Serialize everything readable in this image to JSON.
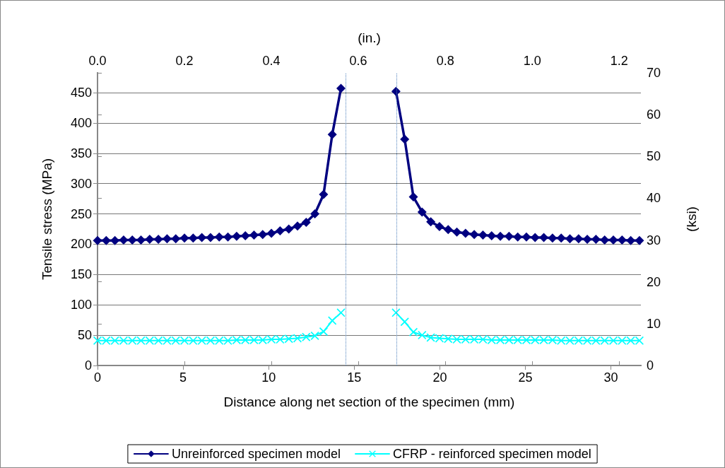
{
  "chart_data": {
    "type": "line",
    "xlabel": "Distance along net section of the specimen (mm)",
    "ylabel": "Tensile stress (MPa)",
    "y2label": "(ksi)",
    "x2label": "(in.)",
    "xlim": [
      0,
      31.75
    ],
    "xticks": [
      0,
      5,
      10,
      15,
      20,
      25,
      30
    ],
    "x2lim": [
      0,
      1.25
    ],
    "x2ticks": [
      {
        "value": 0,
        "label": "0.0"
      },
      {
        "value": 0.2,
        "label": "0.2"
      },
      {
        "value": 0.4,
        "label": "0.4"
      },
      {
        "value": 0.6,
        "label": "0.6"
      },
      {
        "value": 0.8,
        "label": "0.8"
      },
      {
        "value": 1,
        "label": "1.0"
      },
      {
        "value": 1.2,
        "label": "1.2"
      }
    ],
    "ylim": [
      0,
      482.6
    ],
    "yticks": [
      0,
      50,
      100,
      150,
      200,
      250,
      300,
      350,
      400,
      450
    ],
    "y2lim": [
      0,
      70
    ],
    "y2ticks": [
      0,
      10,
      20,
      30,
      40,
      50,
      60,
      70
    ],
    "grid": "y",
    "legend": "bottom",
    "ref_lines": [
      {
        "axis": "x",
        "value": 14.5,
        "color": "#4f81bd",
        "line_style": "dotted"
      },
      {
        "axis": "x",
        "value": 17.48,
        "color": "#4f81bd",
        "line_style": "dotted"
      }
    ],
    "series": [
      {
        "name": "Unreinforced specimen model",
        "color": "#000080",
        "marker": "diamond",
        "x": [
          0,
          0.508,
          1.016,
          1.524,
          2.032,
          2.54,
          3.048,
          3.556,
          4.064,
          4.572,
          5.08,
          5.588,
          6.096,
          6.604,
          7.112,
          7.62,
          8.128,
          8.636,
          9.144,
          9.652,
          10.16,
          10.668,
          11.176,
          11.684,
          12.192,
          12.7,
          13.208,
          13.716,
          14.224,
          null,
          17.44,
          17.948,
          18.456,
          18.964,
          19.472,
          19.98,
          20.488,
          20.996,
          21.504,
          22.012,
          22.52,
          23.028,
          23.536,
          24.044,
          24.552,
          25.06,
          25.568,
          26.076,
          26.584,
          27.092,
          27.6,
          28.108,
          28.616,
          29.124,
          29.632,
          30.14,
          30.648,
          31.156,
          31.664
        ],
        "values": [
          206,
          206,
          206,
          207,
          207,
          207,
          208,
          208,
          209,
          209,
          210,
          210,
          211,
          211,
          212,
          212,
          213,
          214,
          215,
          216,
          218,
          222,
          225,
          230,
          236,
          250,
          282,
          381,
          457,
          null,
          452,
          373,
          278,
          253,
          237,
          229,
          224,
          220,
          218,
          216,
          215,
          214,
          213,
          213,
          212,
          212,
          211,
          211,
          210,
          210,
          209,
          209,
          208,
          208,
          207,
          207,
          207,
          206,
          206
        ]
      },
      {
        "name": "CFRP - reinforced specimen model",
        "color": "#00ffff",
        "marker": "cross",
        "x": [
          0,
          0.508,
          1.016,
          1.524,
          2.032,
          2.54,
          3.048,
          3.556,
          4.064,
          4.572,
          5.08,
          5.588,
          6.096,
          6.604,
          7.112,
          7.62,
          8.128,
          8.636,
          9.144,
          9.652,
          10.16,
          10.668,
          11.176,
          11.684,
          12.192,
          12.7,
          13.208,
          13.716,
          14.224,
          null,
          17.44,
          17.948,
          18.456,
          18.964,
          19.472,
          19.98,
          20.488,
          20.996,
          21.504,
          22.012,
          22.52,
          23.028,
          23.536,
          24.044,
          24.552,
          25.06,
          25.568,
          26.076,
          26.584,
          27.092,
          27.6,
          28.108,
          28.616,
          29.124,
          29.632,
          30.14,
          30.648,
          31.156,
          31.664
        ],
        "values": [
          41,
          41,
          41,
          41,
          41,
          41,
          41,
          41,
          41,
          41,
          41,
          41,
          41,
          41,
          41,
          41,
          42,
          42,
          42,
          42,
          43,
          43,
          44,
          45,
          47,
          49,
          56,
          74,
          87,
          null,
          87,
          72,
          55,
          50,
          46,
          45,
          44,
          43,
          43,
          43,
          43,
          42,
          42,
          42,
          42,
          42,
          42,
          42,
          42,
          41,
          41,
          41,
          41,
          41,
          41,
          41,
          41,
          41,
          41
        ]
      }
    ]
  }
}
